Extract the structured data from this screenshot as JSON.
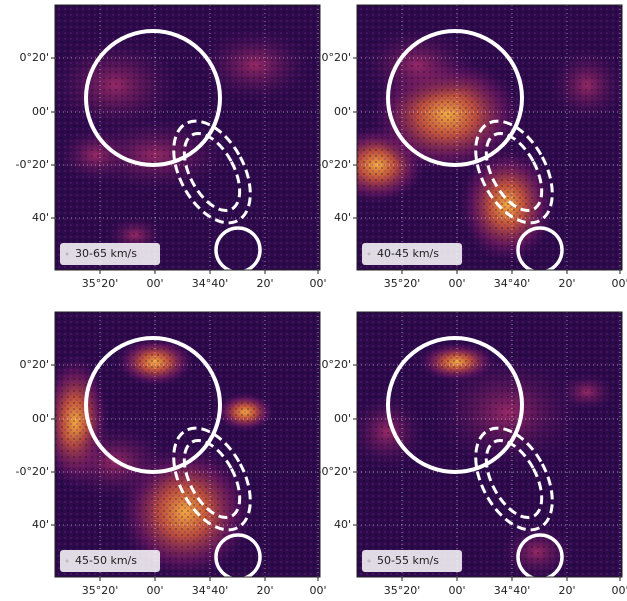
{
  "panels": [
    {
      "label": "30-65 km/s"
    },
    {
      "label": "40-45 km/s"
    },
    {
      "label": "45-50 km/s"
    },
    {
      "label": "50-55 km/s"
    }
  ],
  "x_tick_labels": [
    "35°20'",
    "00'",
    "34°40'",
    "20'",
    "00'"
  ],
  "y_tick_labels": [
    "0°20'",
    "00'",
    "-0°20'",
    "40'"
  ]
}
